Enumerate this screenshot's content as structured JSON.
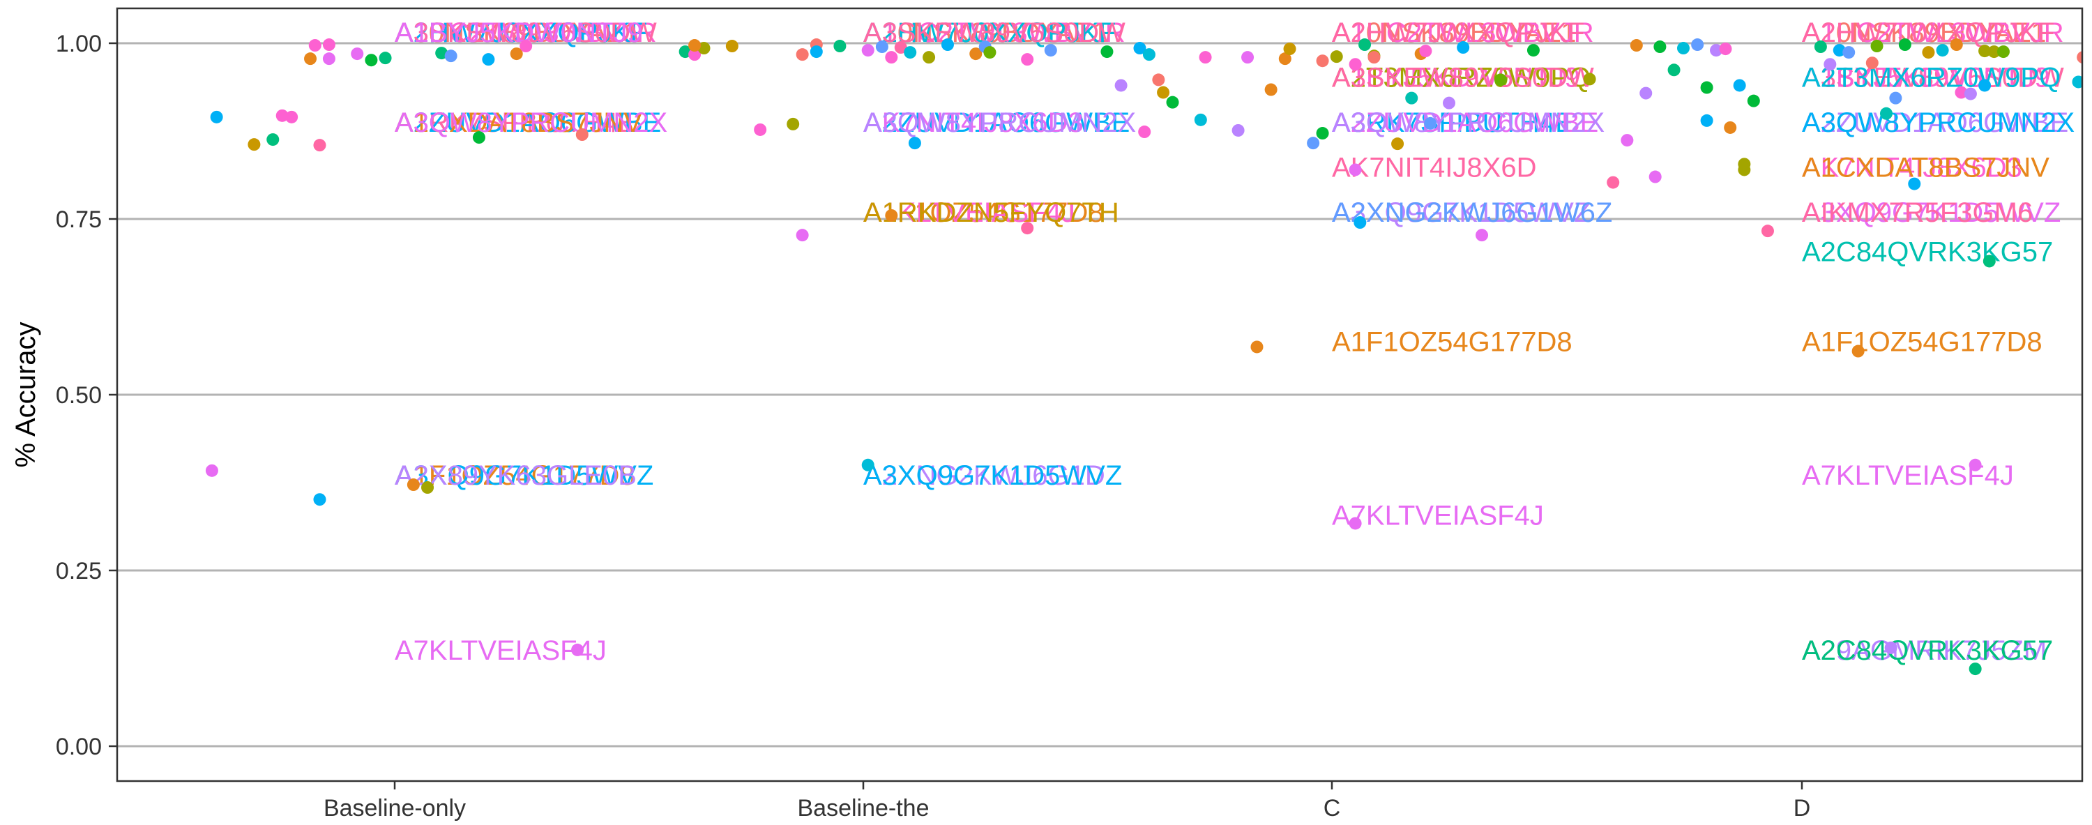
{
  "chart_data": {
    "type": "scatter",
    "title": "",
    "xlabel": "",
    "ylabel": "% Accuracy",
    "categories": [
      "Baseline-only",
      "Baseline-the",
      "C",
      "D"
    ],
    "ylim": [
      0,
      1.05
    ],
    "y_ticks": [
      {
        "value": 0.0,
        "label": "0.00"
      },
      {
        "value": 0.25,
        "label": "0.25"
      },
      {
        "value": 0.5,
        "label": "0.50"
      },
      {
        "value": 0.75,
        "label": "0.75"
      },
      {
        "value": 1.0,
        "label": "1.00"
      }
    ],
    "grid": {
      "horizontal": true,
      "vertical": false
    },
    "legend": "none",
    "palette": [
      "#F8766D",
      "#E7861B",
      "#C99800",
      "#A3A500",
      "#6BB100",
      "#00BA38",
      "#00BF7D",
      "#00C0AF",
      "#00BCD8",
      "#00B0F6",
      "#619CFF",
      "#B983FF",
      "#E76BF3",
      "#FD61D1",
      "#FF67A4"
    ],
    "points": [
      {
        "cat": 0,
        "dx": -0.39,
        "y": 0.392,
        "c": 12
      },
      {
        "cat": 0,
        "dx": -0.38,
        "y": 0.895,
        "c": 9
      },
      {
        "cat": 0,
        "dx": -0.3,
        "y": 0.856,
        "c": 2
      },
      {
        "cat": 0,
        "dx": -0.26,
        "y": 0.863,
        "c": 6
      },
      {
        "cat": 0,
        "dx": -0.24,
        "y": 0.897,
        "c": 13
      },
      {
        "cat": 0,
        "dx": -0.22,
        "y": 0.895,
        "c": 13
      },
      {
        "cat": 0,
        "dx": -0.18,
        "y": 0.978,
        "c": 1
      },
      {
        "cat": 0,
        "dx": -0.17,
        "y": 0.997,
        "c": 13
      },
      {
        "cat": 0,
        "dx": -0.16,
        "y": 0.855,
        "c": 14
      },
      {
        "cat": 0,
        "dx": -0.14,
        "y": 0.998,
        "c": 13
      },
      {
        "cat": 0,
        "dx": -0.14,
        "y": 0.978,
        "c": 12
      },
      {
        "cat": 0,
        "dx": -0.16,
        "y": 0.351,
        "c": 9
      },
      {
        "cat": 0,
        "dx": -0.08,
        "y": 0.985,
        "c": 12
      },
      {
        "cat": 0,
        "dx": -0.05,
        "y": 0.976,
        "c": 5
      },
      {
        "cat": 0,
        "dx": -0.02,
        "y": 0.979,
        "c": 6
      },
      {
        "cat": 0,
        "dx": 0.04,
        "y": 0.372,
        "c": 1
      },
      {
        "cat": 0,
        "dx": 0.07,
        "y": 0.368,
        "c": 3
      },
      {
        "cat": 0,
        "dx": 0.1,
        "y": 0.986,
        "c": 6
      },
      {
        "cat": 0,
        "dx": 0.12,
        "y": 0.982,
        "c": 10
      },
      {
        "cat": 0,
        "dx": 0.18,
        "y": 0.866,
        "c": 5
      },
      {
        "cat": 0,
        "dx": 0.2,
        "y": 0.977,
        "c": 9
      },
      {
        "cat": 0,
        "dx": 0.26,
        "y": 0.985,
        "c": 1
      },
      {
        "cat": 0,
        "dx": 0.28,
        "y": 0.996,
        "c": 13
      },
      {
        "cat": 0,
        "dx": 0.4,
        "y": 0.87,
        "c": 0
      },
      {
        "cat": 0,
        "dx": 0.39,
        "y": 0.137,
        "c": 12
      },
      {
        "cat": 0,
        "dx": 0.62,
        "y": 0.988,
        "c": 6
      },
      {
        "cat": 0,
        "dx": 0.64,
        "y": 0.984,
        "c": 13
      },
      {
        "cat": 0,
        "dx": 0.66,
        "y": 0.993,
        "c": 3
      },
      {
        "cat": 1,
        "dx": -0.36,
        "y": 0.997,
        "c": 1
      },
      {
        "cat": 1,
        "dx": -0.28,
        "y": 0.996,
        "c": 2
      },
      {
        "cat": 1,
        "dx": -0.22,
        "y": 0.877,
        "c": 13
      },
      {
        "cat": 1,
        "dx": -0.15,
        "y": 0.885,
        "c": 3
      },
      {
        "cat": 1,
        "dx": -0.13,
        "y": 0.727,
        "c": 12
      },
      {
        "cat": 1,
        "dx": -0.13,
        "y": 0.984,
        "c": 0
      },
      {
        "cat": 1,
        "dx": -0.1,
        "y": 0.998,
        "c": 0
      },
      {
        "cat": 1,
        "dx": -0.1,
        "y": 0.988,
        "c": 9
      },
      {
        "cat": 1,
        "dx": -0.05,
        "y": 0.996,
        "c": 6
      },
      {
        "cat": 1,
        "dx": 0.01,
        "y": 0.99,
        "c": 12
      },
      {
        "cat": 1,
        "dx": 0.04,
        "y": 0.995,
        "c": 10
      },
      {
        "cat": 1,
        "dx": 0.06,
        "y": 0.98,
        "c": 13
      },
      {
        "cat": 1,
        "dx": 0.08,
        "y": 0.994,
        "c": 14
      },
      {
        "cat": 1,
        "dx": 0.1,
        "y": 0.987,
        "c": 8
      },
      {
        "cat": 1,
        "dx": 0.11,
        "y": 0.858,
        "c": 9
      },
      {
        "cat": 1,
        "dx": 0.14,
        "y": 0.98,
        "c": 3
      },
      {
        "cat": 1,
        "dx": 0.18,
        "y": 0.998,
        "c": 9
      },
      {
        "cat": 1,
        "dx": 0.24,
        "y": 0.985,
        "c": 1
      },
      {
        "cat": 1,
        "dx": 0.26,
        "y": 0.995,
        "c": 10
      },
      {
        "cat": 1,
        "dx": 0.27,
        "y": 0.987,
        "c": 4
      },
      {
        "cat": 1,
        "dx": 0.35,
        "y": 0.737,
        "c": 14
      },
      {
        "cat": 1,
        "dx": 0.35,
        "y": 0.977,
        "c": 13
      },
      {
        "cat": 1,
        "dx": 0.4,
        "y": 0.99,
        "c": 10
      },
      {
        "cat": 1,
        "dx": 0.01,
        "y": 0.4,
        "c": 8
      },
      {
        "cat": 1,
        "dx": 0.06,
        "y": 0.755,
        "c": 1
      },
      {
        "cat": 1,
        "dx": 0.52,
        "y": 0.988,
        "c": 5
      },
      {
        "cat": 1,
        "dx": 0.55,
        "y": 0.94,
        "c": 11
      },
      {
        "cat": 1,
        "dx": 0.59,
        "y": 0.993,
        "c": 9
      },
      {
        "cat": 1,
        "dx": 0.61,
        "y": 0.984,
        "c": 8
      },
      {
        "cat": 1,
        "dx": 0.63,
        "y": 0.948,
        "c": 0
      },
      {
        "cat": 1,
        "dx": 0.64,
        "y": 0.93,
        "c": 2
      },
      {
        "cat": 1,
        "dx": 0.66,
        "y": 0.916,
        "c": 5
      },
      {
        "cat": 1,
        "dx": 0.6,
        "y": 0.874,
        "c": 13
      },
      {
        "cat": 1,
        "dx": 0.72,
        "y": 0.891,
        "c": 8
      },
      {
        "cat": 1,
        "dx": 0.8,
        "y": 0.876,
        "c": 11
      },
      {
        "cat": 1,
        "dx": 0.82,
        "y": 0.98,
        "c": 12
      },
      {
        "cat": 1,
        "dx": 0.73,
        "y": 0.98,
        "c": 13
      },
      {
        "cat": 1,
        "dx": 0.9,
        "y": 0.978,
        "c": 1
      },
      {
        "cat": 2,
        "dx": -0.16,
        "y": 0.568,
        "c": 1
      },
      {
        "cat": 2,
        "dx": -0.13,
        "y": 0.934,
        "c": 1
      },
      {
        "cat": 2,
        "dx": -0.09,
        "y": 0.992,
        "c": 2
      },
      {
        "cat": 2,
        "dx": -0.04,
        "y": 0.858,
        "c": 10
      },
      {
        "cat": 2,
        "dx": -0.02,
        "y": 0.872,
        "c": 5
      },
      {
        "cat": 2,
        "dx": -0.02,
        "y": 0.975,
        "c": 0
      },
      {
        "cat": 2,
        "dx": 0.01,
        "y": 0.981,
        "c": 3
      },
      {
        "cat": 2,
        "dx": 0.05,
        "y": 0.97,
        "c": 13
      },
      {
        "cat": 2,
        "dx": 0.05,
        "y": 0.82,
        "c": 12
      },
      {
        "cat": 2,
        "dx": 0.05,
        "y": 0.317,
        "c": 12
      },
      {
        "cat": 2,
        "dx": 0.06,
        "y": 0.745,
        "c": 9
      },
      {
        "cat": 2,
        "dx": 0.07,
        "y": 0.998,
        "c": 6
      },
      {
        "cat": 2,
        "dx": 0.09,
        "y": 0.982,
        "c": 3
      },
      {
        "cat": 2,
        "dx": 0.09,
        "y": 0.98,
        "c": 0
      },
      {
        "cat": 2,
        "dx": 0.14,
        "y": 0.857,
        "c": 2
      },
      {
        "cat": 2,
        "dx": 0.17,
        "y": 0.922,
        "c": 7
      },
      {
        "cat": 2,
        "dx": 0.19,
        "y": 0.985,
        "c": 1
      },
      {
        "cat": 2,
        "dx": 0.2,
        "y": 0.989,
        "c": 13
      },
      {
        "cat": 2,
        "dx": 0.21,
        "y": 0.886,
        "c": 10
      },
      {
        "cat": 2,
        "dx": 0.25,
        "y": 0.915,
        "c": 11
      },
      {
        "cat": 2,
        "dx": 0.28,
        "y": 0.994,
        "c": 9
      },
      {
        "cat": 2,
        "dx": 0.32,
        "y": 0.727,
        "c": 12
      },
      {
        "cat": 2,
        "dx": 0.36,
        "y": 0.948,
        "c": 4
      },
      {
        "cat": 2,
        "dx": 0.43,
        "y": 0.99,
        "c": 5
      },
      {
        "cat": 2,
        "dx": 0.55,
        "y": 0.949,
        "c": 3
      },
      {
        "cat": 2,
        "dx": 0.6,
        "y": 0.802,
        "c": 14
      },
      {
        "cat": 2,
        "dx": 0.63,
        "y": 0.862,
        "c": 12
      },
      {
        "cat": 2,
        "dx": 0.65,
        "y": 0.997,
        "c": 1
      },
      {
        "cat": 2,
        "dx": 0.67,
        "y": 0.929,
        "c": 11
      },
      {
        "cat": 2,
        "dx": 0.69,
        "y": 0.81,
        "c": 12
      },
      {
        "cat": 2,
        "dx": 0.7,
        "y": 0.995,
        "c": 5
      },
      {
        "cat": 2,
        "dx": 0.73,
        "y": 0.962,
        "c": 6
      },
      {
        "cat": 2,
        "dx": 0.75,
        "y": 0.993,
        "c": 8
      },
      {
        "cat": 2,
        "dx": 0.78,
        "y": 0.998,
        "c": 10
      },
      {
        "cat": 2,
        "dx": 0.8,
        "y": 0.937,
        "c": 5
      },
      {
        "cat": 2,
        "dx": 0.82,
        "y": 0.99,
        "c": 11
      },
      {
        "cat": 2,
        "dx": 0.85,
        "y": 0.88,
        "c": 1
      },
      {
        "cat": 2,
        "dx": 0.87,
        "y": 0.94,
        "c": 9
      },
      {
        "cat": 2,
        "dx": 0.88,
        "y": 0.82,
        "c": 3
      },
      {
        "cat": 2,
        "dx": 0.88,
        "y": 0.828,
        "c": 3
      },
      {
        "cat": 2,
        "dx": 0.9,
        "y": 0.918,
        "c": 5
      },
      {
        "cat": 2,
        "dx": 0.93,
        "y": 0.733,
        "c": 14
      },
      {
        "cat": 2,
        "dx": 0.84,
        "y": 0.992,
        "c": 13
      },
      {
        "cat": 2,
        "dx": 0.8,
        "y": 0.89,
        "c": 9
      },
      {
        "cat": 3,
        "dx": 0.04,
        "y": 0.995,
        "c": 6
      },
      {
        "cat": 3,
        "dx": 0.06,
        "y": 0.97,
        "c": 11
      },
      {
        "cat": 3,
        "dx": 0.08,
        "y": 0.99,
        "c": 9
      },
      {
        "cat": 3,
        "dx": 0.1,
        "y": 0.987,
        "c": 10
      },
      {
        "cat": 3,
        "dx": 0.12,
        "y": 0.562,
        "c": 1
      },
      {
        "cat": 3,
        "dx": 0.15,
        "y": 0.972,
        "c": 0
      },
      {
        "cat": 3,
        "dx": 0.16,
        "y": 0.996,
        "c": 4
      },
      {
        "cat": 3,
        "dx": 0.18,
        "y": 0.9,
        "c": 7
      },
      {
        "cat": 3,
        "dx": 0.19,
        "y": 0.14,
        "c": 11
      },
      {
        "cat": 3,
        "dx": 0.2,
        "y": 0.922,
        "c": 10
      },
      {
        "cat": 3,
        "dx": 0.22,
        "y": 0.998,
        "c": 5
      },
      {
        "cat": 3,
        "dx": 0.24,
        "y": 0.8,
        "c": 9
      },
      {
        "cat": 3,
        "dx": 0.27,
        "y": 0.987,
        "c": 2
      },
      {
        "cat": 3,
        "dx": 0.3,
        "y": 0.99,
        "c": 8
      },
      {
        "cat": 3,
        "dx": 0.33,
        "y": 0.998,
        "c": 1
      },
      {
        "cat": 3,
        "dx": 0.34,
        "y": 0.93,
        "c": 13
      },
      {
        "cat": 3,
        "dx": 0.37,
        "y": 0.11,
        "c": 6
      },
      {
        "cat": 3,
        "dx": 0.36,
        "y": 0.928,
        "c": 11
      },
      {
        "cat": 3,
        "dx": 0.39,
        "y": 0.94,
        "c": 9
      },
      {
        "cat": 3,
        "dx": 0.37,
        "y": 0.4,
        "c": 12
      },
      {
        "cat": 3,
        "dx": 0.39,
        "y": 0.989,
        "c": 3
      },
      {
        "cat": 3,
        "dx": 0.41,
        "y": 0.988,
        "c": 3
      },
      {
        "cat": 3,
        "dx": 0.43,
        "y": 0.988,
        "c": 4
      },
      {
        "cat": 3,
        "dx": 0.4,
        "y": 0.69,
        "c": 6
      },
      {
        "cat": 3,
        "dx": 0.6,
        "y": 0.98,
        "c": 0
      },
      {
        "cat": 3,
        "dx": 0.59,
        "y": 0.945,
        "c": 8
      }
    ],
    "labels": [
      {
        "cat": 0,
        "y": 1.016,
        "text": "A10NSK89BDYAZ1",
        "c": 0
      },
      {
        "cat": 0,
        "y": 1.016,
        "text": "A1HC2TWL3WBVJR",
        "c": 13
      },
      {
        "cat": 0,
        "y": 1.016,
        "text": "A2HW7J0XXQPJKF",
        "c": 9
      },
      {
        "cat": 0,
        "y": 1.016,
        "text": "A3SKEW89V5S0DW",
        "c": 14
      },
      {
        "cat": 0,
        "y": 1.016,
        "text": "A1BYJ5KDW0NTJ9",
        "c": 12
      },
      {
        "cat": 0,
        "y": 0.888,
        "text": "A3RK7SFIBUTH4E",
        "c": 14
      },
      {
        "cat": 0,
        "y": 0.888,
        "text": "A2ZUVD1AO6GWBE",
        "c": 9
      },
      {
        "cat": 0,
        "y": 0.888,
        "text": "A1CXDAT8BS7JNV",
        "c": 1
      },
      {
        "cat": 0,
        "y": 0.888,
        "text": "A3QW8YPRCUMN2X",
        "c": 12
      },
      {
        "cat": 0,
        "y": 0.386,
        "text": "A1F1OZ54G177D8",
        "c": 1
      },
      {
        "cat": 0,
        "y": 0.386,
        "text": "A3XQ9G7K1D5WVZ",
        "c": 9
      },
      {
        "cat": 0,
        "y": 0.386,
        "text": "A2X89YK63GLE0B",
        "c": 11
      },
      {
        "cat": 0,
        "y": 0.137,
        "text": "A7KLTVEIASF4J",
        "c": 12
      },
      {
        "cat": 1,
        "y": 1.016,
        "text": "A10NSK89BDYAZ1",
        "c": 0
      },
      {
        "cat": 1,
        "y": 1.016,
        "text": "A1HC2TWL3WBVJR",
        "c": 13
      },
      {
        "cat": 1,
        "y": 1.016,
        "text": "A2HW7J0XXQPJKF",
        "c": 8
      },
      {
        "cat": 1,
        "y": 1.016,
        "text": "A3SKEW89V5S0DW",
        "c": 14
      },
      {
        "cat": 1,
        "y": 0.888,
        "text": "A2ZUVD1AO6GWBE",
        "c": 9
      },
      {
        "cat": 1,
        "y": 0.888,
        "text": "AK7NIT4IJ8X6D3",
        "c": 12
      },
      {
        "cat": 1,
        "y": 0.888,
        "text": "A3QW8YPRCUMN2X",
        "c": 11
      },
      {
        "cat": 1,
        "y": 0.76,
        "text": "A1F1OZ54G177D8",
        "c": 1
      },
      {
        "cat": 1,
        "y": 0.76,
        "text": "A1KLTVEIASF4J",
        "c": 13
      },
      {
        "cat": 1,
        "y": 0.76,
        "text": "A1RKDZN5FYQ7TH",
        "c": 2
      },
      {
        "cat": 1,
        "y": 0.386,
        "text": "A2XNG2KWJ6G1D",
        "c": 11
      },
      {
        "cat": 1,
        "y": 0.386,
        "text": "A3XQ9G7K1D5WVZ",
        "c": 9
      },
      {
        "cat": 2,
        "y": 1.016,
        "text": "A10NSK89BDYAZ1",
        "c": 0
      },
      {
        "cat": 2,
        "y": 1.016,
        "text": "A1HC2TWL3WBVJR",
        "c": 13
      },
      {
        "cat": 2,
        "y": 1.016,
        "text": "A2HW7J0XXQPJKF",
        "c": 14
      },
      {
        "cat": 2,
        "y": 0.952,
        "text": "A1BYJ5KDW0NTJ9",
        "c": 13
      },
      {
        "cat": 2,
        "y": 0.952,
        "text": "A2T3MX6RZ0W9PQ",
        "c": 3
      },
      {
        "cat": 2,
        "y": 0.952,
        "text": "A3SKEW89V5S0DW",
        "c": 14
      },
      {
        "cat": 2,
        "y": 0.888,
        "text": "A3RK7SFIBUTH4E",
        "c": 9
      },
      {
        "cat": 2,
        "y": 0.888,
        "text": "A2ZUVD1AO6GWBE",
        "c": 12
      },
      {
        "cat": 2,
        "y": 0.888,
        "text": "A3QW8YPRCUMN2X",
        "c": 11
      },
      {
        "cat": 2,
        "y": 0.824,
        "text": "AK7NIT4IJ8X6D",
        "c": 14
      },
      {
        "cat": 2,
        "y": 0.76,
        "text": "A3XQ9G7K1D5WVZ",
        "c": 11
      },
      {
        "cat": 2,
        "y": 0.76,
        "text": "A2XNG2KWJ6G1W6Z",
        "c": 10
      },
      {
        "cat": 2,
        "y": 0.576,
        "text": "A1F1OZ54G177D8",
        "c": 1
      },
      {
        "cat": 2,
        "y": 0.329,
        "text": "A7KLTVEIASF4J",
        "c": 12
      },
      {
        "cat": 3,
        "y": 1.016,
        "text": "A10NSK89BDYAZ1",
        "c": 0
      },
      {
        "cat": 3,
        "y": 1.016,
        "text": "A1HC2TWL3WBVJR",
        "c": 13
      },
      {
        "cat": 3,
        "y": 1.016,
        "text": "A2HW7J0XXQPJKF",
        "c": 14
      },
      {
        "cat": 3,
        "y": 0.952,
        "text": "A3SKEW89V5S0DW",
        "c": 14
      },
      {
        "cat": 3,
        "y": 0.952,
        "text": "A1BYJ5KDW0NTJ9",
        "c": 13
      },
      {
        "cat": 3,
        "y": 0.952,
        "text": "A2T3MX6RZ0W9PQ",
        "c": 8
      },
      {
        "cat": 3,
        "y": 0.888,
        "text": "A2ZUVD1AO6GWBE",
        "c": 11
      },
      {
        "cat": 3,
        "y": 0.888,
        "text": "A3QW8YPRCUMN2X",
        "c": 9
      },
      {
        "cat": 3,
        "y": 0.824,
        "text": "AK7NIT4IJ8X6D3",
        "c": 13
      },
      {
        "cat": 3,
        "y": 0.824,
        "text": "A1CXDAT8BS7JNV",
        "c": 1
      },
      {
        "cat": 3,
        "y": 0.76,
        "text": "A3XQ9G7K1D5WVZ",
        "c": 12
      },
      {
        "cat": 3,
        "y": 0.76,
        "text": "AIKMX7R5F3GM6",
        "c": 14
      },
      {
        "cat": 3,
        "y": 0.704,
        "text": "A2C84QVRK3KG57",
        "c": 7
      },
      {
        "cat": 3,
        "y": 0.576,
        "text": "A1F1OZ54G177D8",
        "c": 1
      },
      {
        "cat": 3,
        "y": 0.386,
        "text": "A7KLTVEIASF4J",
        "c": 12
      },
      {
        "cat": 3,
        "y": 0.137,
        "text": "A29AGMRIK7J5ZM",
        "c": 11
      },
      {
        "cat": 3,
        "y": 0.137,
        "text": "A2C84QVRK3KG57",
        "c": 6
      }
    ]
  }
}
